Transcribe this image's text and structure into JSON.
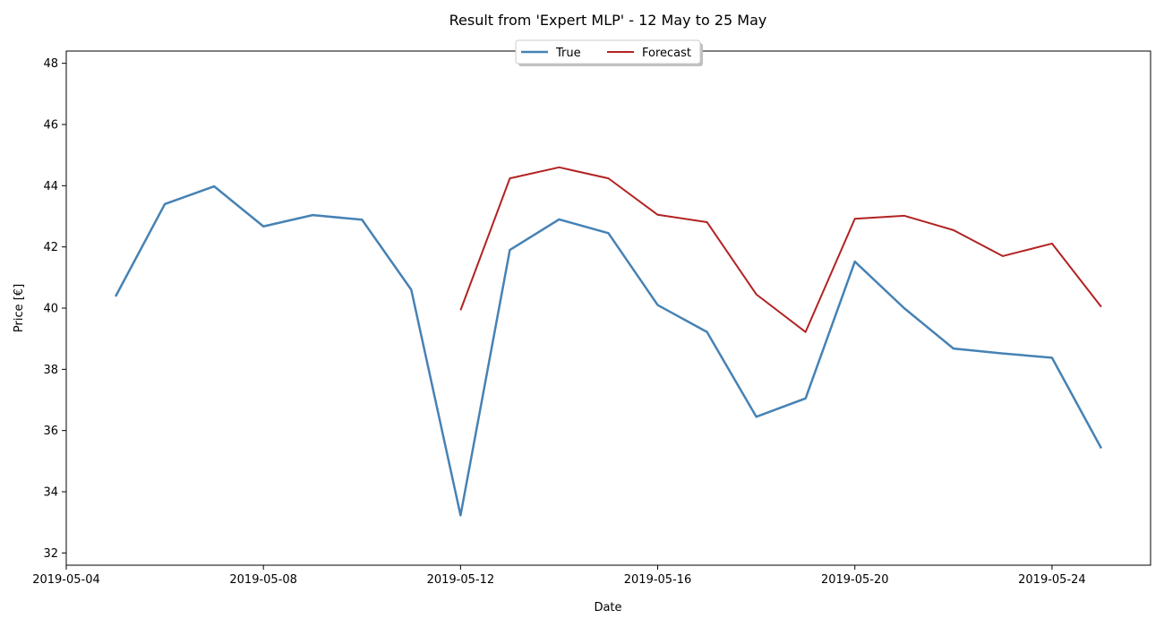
{
  "chart_data": {
    "type": "line",
    "title": "Result from 'Expert MLP' - 12 May to 25 May",
    "xlabel": "Date",
    "ylabel": "Price [€]",
    "xlim": [
      "2019-05-04",
      "2019-05-26"
    ],
    "ylim": [
      31.6,
      48.4
    ],
    "x_ticks": [
      "2019-05-04",
      "2019-05-08",
      "2019-05-12",
      "2019-05-16",
      "2019-05-20",
      "2019-05-24"
    ],
    "y_ticks": [
      32,
      34,
      36,
      38,
      40,
      42,
      44,
      46,
      48
    ],
    "grid": false,
    "legend_position": "top-center",
    "series": [
      {
        "name": "True",
        "color": "#4682b4",
        "x": [
          "2019-05-05",
          "2019-05-06",
          "2019-05-07",
          "2019-05-08",
          "2019-05-09",
          "2019-05-10",
          "2019-05-11",
          "2019-05-12",
          "2019-05-13",
          "2019-05-14",
          "2019-05-15",
          "2019-05-16",
          "2019-05-17",
          "2019-05-18",
          "2019-05-19",
          "2019-05-20",
          "2019-05-21",
          "2019-05-22",
          "2019-05-23",
          "2019-05-24",
          "2019-05-25"
        ],
        "y": [
          40.38,
          43.4,
          43.98,
          42.67,
          43.04,
          42.89,
          40.6,
          33.23,
          41.9,
          42.9,
          42.45,
          40.1,
          39.22,
          36.45,
          37.05,
          41.52,
          40.0,
          38.68,
          38.52,
          38.38,
          35.42
        ]
      },
      {
        "name": "Forecast",
        "color": "#b22222",
        "x": [
          "2019-05-12",
          "2019-05-13",
          "2019-05-14",
          "2019-05-15",
          "2019-05-16",
          "2019-05-17",
          "2019-05-18",
          "2019-05-19",
          "2019-05-20",
          "2019-05-21",
          "2019-05-22",
          "2019-05-23",
          "2019-05-24",
          "2019-05-25"
        ],
        "y": [
          39.93,
          44.24,
          44.6,
          44.24,
          43.05,
          42.81,
          40.45,
          39.22,
          42.92,
          43.02,
          42.55,
          41.7,
          42.11,
          40.04
        ]
      }
    ]
  }
}
